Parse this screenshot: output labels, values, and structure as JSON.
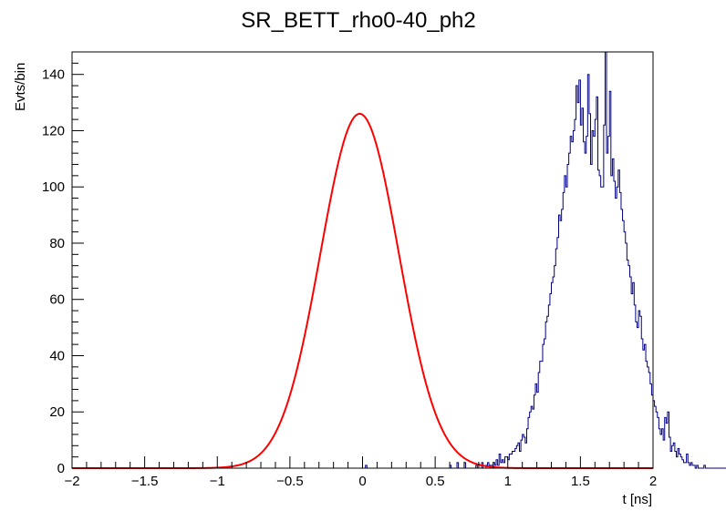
{
  "chart_data": {
    "type": "line",
    "title": "SR_BETT_rho0-40_ph2",
    "xlabel": "t [ns]",
    "ylabel": "Evts/bin",
    "xlim": [
      -2,
      2
    ],
    "ylim": [
      0,
      148
    ],
    "x_ticks": [
      -2,
      -1.5,
      -1,
      -0.5,
      0,
      0.5,
      1,
      1.5,
      2
    ],
    "x_tick_labels": [
      "−2",
      "−1.5",
      "−1",
      "−0.5",
      "0",
      "0.5",
      "1",
      "1.5",
      "2"
    ],
    "y_ticks": [
      0,
      20,
      40,
      60,
      80,
      100,
      120,
      140
    ],
    "y_tick_labels": [
      "0",
      "20",
      "40",
      "60",
      "80",
      "100",
      "120",
      "140"
    ],
    "grid": false,
    "legend": "none",
    "series": [
      {
        "kind": "histogram",
        "color": "#000080",
        "bin_width": 0.01,
        "bin_start": -2,
        "values": [
          0,
          0,
          0,
          0,
          0,
          0,
          0,
          0,
          0,
          0,
          0,
          0,
          0,
          0,
          0,
          0,
          0,
          0,
          0,
          0,
          0,
          0,
          0,
          0,
          0,
          0,
          0,
          0,
          0,
          0,
          0,
          0,
          0,
          0,
          0,
          0,
          0,
          0,
          0,
          0,
          0,
          0,
          0,
          0,
          0,
          0,
          0,
          0,
          0,
          0,
          0,
          0,
          0,
          0,
          0,
          0,
          0,
          0,
          0,
          0,
          0,
          0,
          0,
          0,
          0,
          0,
          0,
          0,
          0,
          0,
          0,
          0,
          0,
          0,
          0,
          0,
          0,
          0,
          0,
          0,
          0,
          0,
          0,
          0,
          0,
          0,
          0,
          0,
          0,
          0,
          0,
          0,
          0,
          0,
          0,
          0,
          0,
          0,
          0,
          0,
          0,
          0,
          0,
          0,
          0,
          0,
          0,
          0,
          0,
          0,
          0,
          0,
          0,
          0,
          0,
          0,
          0,
          0,
          0,
          0,
          0,
          0,
          0,
          0,
          0,
          0,
          0,
          0,
          0,
          0,
          0,
          0,
          0,
          0,
          0,
          0,
          0,
          0,
          0,
          0,
          0,
          0,
          0,
          0,
          0,
          0,
          0,
          0,
          0,
          0,
          0,
          0,
          0,
          0,
          0,
          0,
          0,
          0,
          0,
          0,
          0,
          0,
          0,
          0,
          0,
          0,
          0,
          0,
          0,
          0,
          0,
          0,
          0,
          0,
          0,
          0,
          0,
          0,
          0,
          0,
          0,
          0,
          0,
          0,
          0,
          0,
          0,
          0,
          0,
          0,
          0,
          0,
          0,
          0,
          0,
          0,
          0,
          0,
          0,
          0,
          0,
          0,
          1,
          0,
          0,
          0,
          0,
          0,
          0,
          0,
          0,
          0,
          0,
          0,
          0,
          0,
          0,
          0,
          0,
          0,
          0,
          0,
          0,
          0,
          0,
          0,
          0,
          0,
          0,
          0,
          0,
          0,
          0,
          0,
          0,
          0,
          0,
          0,
          0,
          0,
          0,
          0,
          0,
          0,
          0,
          0,
          0,
          0,
          0,
          0,
          0,
          0,
          0,
          0,
          0,
          0,
          0,
          0,
          0,
          0,
          1,
          0,
          0,
          0,
          0,
          2,
          0,
          0,
          0,
          0,
          2,
          0,
          0,
          0,
          0,
          0,
          0,
          0,
          1,
          0,
          0,
          0,
          2,
          0,
          0,
          1,
          2,
          1,
          1,
          1,
          2,
          1,
          3,
          1,
          5,
          2,
          3,
          2,
          4,
          4,
          3,
          5,
          5,
          6,
          6,
          7,
          8,
          9,
          6,
          10,
          12,
          11,
          9,
          14,
          18,
          20,
          22,
          21,
          26,
          30,
          27,
          34,
          38,
          38,
          44,
          46,
          52,
          54,
          58,
          62,
          66,
          68,
          72,
          78,
          82,
          90,
          88,
          92,
          98,
          104,
          100,
          108,
          112,
          118,
          116,
          120,
          124,
          136,
          130,
          138,
          122,
          128,
          116,
          112,
          118,
          140,
          126,
          108,
          120,
          118,
          124,
          132,
          106,
          104,
          100,
          100,
          122,
          148,
          112,
          118,
          134,
          104,
          110,
          102,
          96,
          100,
          106,
          98,
          92,
          88,
          84,
          80,
          74,
          72,
          68,
          62,
          66,
          58,
          52,
          50,
          56,
          54,
          46,
          42,
          44,
          38,
          36,
          34,
          30,
          26,
          24,
          22,
          20,
          18,
          14,
          12,
          14,
          10,
          18,
          16,
          20,
          11,
          6,
          8,
          9,
          6,
          4,
          7,
          5,
          4,
          3,
          2,
          2,
          5,
          2,
          1,
          2,
          1,
          1,
          0,
          1,
          0,
          0,
          0,
          0,
          1,
          0,
          0,
          0,
          0,
          0,
          0,
          0,
          0,
          0,
          0,
          0,
          0,
          0,
          0,
          0,
          0,
          0,
          0,
          0,
          0,
          0,
          0,
          0,
          0,
          0,
          0,
          0,
          0,
          0,
          0,
          0,
          0,
          0,
          0,
          0,
          0,
          0,
          0,
          0,
          0,
          0,
          0,
          0,
          0,
          0,
          0,
          0,
          0,
          0,
          0,
          0,
          0,
          0,
          0,
          0,
          0,
          0,
          0,
          0,
          0,
          0,
          0,
          0,
          0,
          0,
          0,
          0,
          0,
          0,
          0,
          0,
          0,
          0,
          0,
          0,
          0,
          0,
          0,
          0,
          0,
          0,
          0,
          0,
          0,
          0,
          0,
          0,
          0,
          0,
          0,
          0,
          0,
          0,
          0,
          0,
          0,
          0,
          0,
          0,
          0,
          0,
          0,
          0,
          0,
          0,
          0,
          0,
          0,
          0,
          0,
          0,
          0,
          0,
          0,
          0,
          0,
          0,
          0,
          0,
          0,
          0,
          0,
          0,
          0,
          0,
          0,
          0,
          0,
          0,
          0,
          0,
          0,
          0,
          0,
          0,
          0,
          0,
          0,
          0,
          0,
          0,
          0,
          0,
          0,
          0,
          0,
          0,
          0,
          0,
          0,
          0,
          0,
          0,
          0,
          0,
          0,
          0,
          0,
          0,
          0,
          0,
          0,
          0,
          0,
          0,
          0
        ]
      },
      {
        "kind": "gaussian-fit",
        "color": "#ff0000",
        "amplitude": 126,
        "mean": -0.02,
        "sigma": 0.27
      }
    ]
  }
}
